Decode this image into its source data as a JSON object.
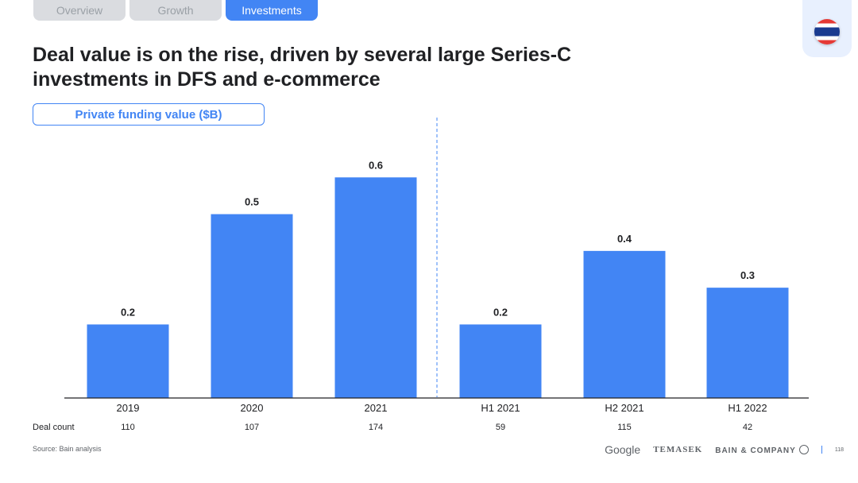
{
  "tabs": [
    {
      "label": "Overview"
    },
    {
      "label": "Growth"
    },
    {
      "label": "Investments"
    }
  ],
  "flag_icon": "thailand-flag-icon",
  "title": "Deal value is on the rise, driven by several large Series-C investments in DFS and e-commerce",
  "chart_label": "Private funding value ($B)",
  "chart_data": {
    "type": "bar",
    "categories": [
      "2019",
      "2020",
      "2021",
      "H1 2021",
      "H2 2021",
      "H1 2022"
    ],
    "values": [
      0.2,
      0.5,
      0.6,
      0.2,
      0.4,
      0.3
    ],
    "labels": [
      "0.2",
      "0.5",
      "0.6",
      "0.2",
      "0.4",
      "0.3"
    ],
    "bar_color": "#4285f4",
    "ylim": [
      0,
      0.7
    ],
    "grid": false,
    "separator_after_index": 2,
    "row_label": "Deal count",
    "deal_counts": [
      "110",
      "107",
      "174",
      "59",
      "115",
      "42"
    ]
  },
  "footer": {
    "source": "Source: Bain analysis",
    "logos": [
      "Google",
      "TEMASEK",
      "BAIN & COMPANY"
    ],
    "page_number": "118"
  }
}
